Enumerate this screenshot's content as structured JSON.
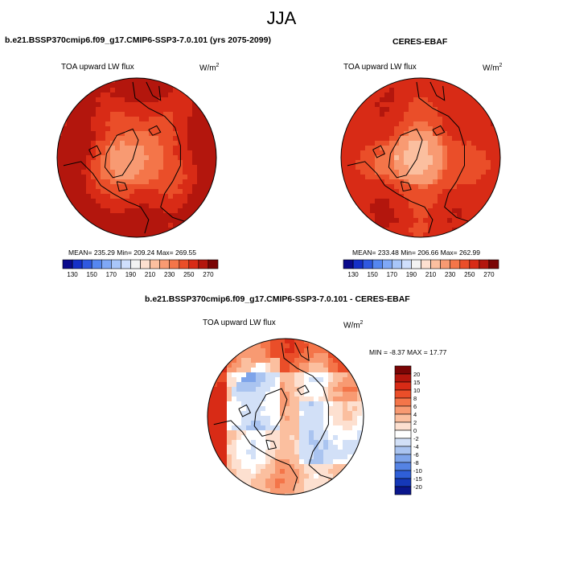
{
  "season": "JJA",
  "chart_data": [
    {
      "type": "heatmap",
      "projection": "north polar stereographic",
      "title": "b.e21.BSSP370cmip6.f09_g17.CMIP6-SSP3-7.0.101 (yrs 2075-2099)",
      "variable": "TOA upward LW flux",
      "units": "W/m",
      "units_exp": "2",
      "stats_text": "MEAN= 235.29  Min= 209.24  Max= 269.55",
      "mean": 235.29,
      "min": 209.24,
      "max": 269.55,
      "colorbar": {
        "orientation": "horizontal",
        "levels": [
          130,
          140,
          150,
          160,
          170,
          180,
          190,
          200,
          210,
          220,
          230,
          240,
          250,
          260,
          270
        ],
        "tick_labels": [
          "130",
          "150",
          "170",
          "190",
          "210",
          "230",
          "250",
          "270"
        ],
        "colors": [
          "#0a0a8c",
          "#1530c8",
          "#2f59e0",
          "#5587f0",
          "#7fa8f6",
          "#a8c6f9",
          "#cfdffc",
          "#f3f3f3",
          "#fde0d0",
          "#fbbf9f",
          "#f89a72",
          "#f47549",
          "#ea4e29",
          "#d82b16",
          "#b3160d",
          "#7a0505"
        ]
      }
    },
    {
      "type": "heatmap",
      "projection": "north polar stereographic",
      "title": "CERES-EBAF",
      "variable": "TOA upward LW flux",
      "units": "W/m",
      "units_exp": "2",
      "stats_text": "MEAN= 233.48  Min= 206.66  Max= 262.99",
      "mean": 233.48,
      "min": 206.66,
      "max": 262.99,
      "colorbar": {
        "orientation": "horizontal",
        "levels": [
          130,
          140,
          150,
          160,
          170,
          180,
          190,
          200,
          210,
          220,
          230,
          240,
          250,
          260,
          270
        ],
        "tick_labels": [
          "130",
          "150",
          "170",
          "190",
          "210",
          "230",
          "250",
          "270"
        ],
        "colors": [
          "#0a0a8c",
          "#1530c8",
          "#2f59e0",
          "#5587f0",
          "#7fa8f6",
          "#a8c6f9",
          "#cfdffc",
          "#f3f3f3",
          "#fde0d0",
          "#fbbf9f",
          "#f89a72",
          "#f47549",
          "#ea4e29",
          "#d82b16",
          "#b3160d",
          "#7a0505"
        ]
      }
    },
    {
      "type": "heatmap",
      "projection": "north polar stereographic",
      "title": "b.e21.BSSP370cmip6.f09_g17.CMIP6-SSP3-7.0.101 - CERES-EBAF",
      "variable": "TOA upward LW flux",
      "units": "W/m",
      "units_exp": "2",
      "stats_text": "MIN =  -8.37 MAX =  17.77",
      "min": -8.37,
      "max": 17.77,
      "colorbar": {
        "orientation": "vertical",
        "tick_labels": [
          "20",
          "15",
          "10",
          "8",
          "6",
          "4",
          "2",
          "0",
          "-2",
          "-4",
          "-6",
          "-8",
          "-10",
          "-15",
          "-20"
        ],
        "colors": [
          "#7a0505",
          "#b3160d",
          "#d82b16",
          "#ea4e29",
          "#f47549",
          "#f89a72",
          "#fbbf9f",
          "#fde0d0",
          "#ffffff",
          "#d2e0f7",
          "#aac4f0",
          "#7ea4ea",
          "#5583e4",
          "#2f5fd8",
          "#1538b8",
          "#0a168c"
        ]
      }
    }
  ]
}
